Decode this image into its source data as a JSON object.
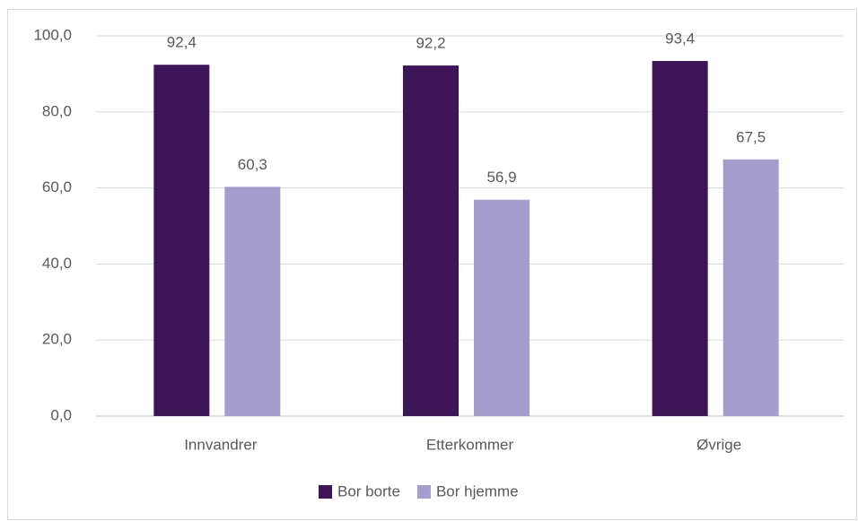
{
  "chart_data": {
    "type": "bar",
    "categories": [
      "Innvandrer",
      "Etterkommer",
      "Øvrige"
    ],
    "series": [
      {
        "name": "Bor borte",
        "color": "#3e1558",
        "values": [
          92.4,
          92.2,
          93.4
        ],
        "value_labels": [
          "92,4",
          "92,2",
          "93,4"
        ]
      },
      {
        "name": "Bor hjemme",
        "color": "#a59dcd",
        "values": [
          60.3,
          56.9,
          67.5
        ],
        "value_labels": [
          "60,3",
          "56,9",
          "67,5"
        ]
      }
    ],
    "ylim": [
      0,
      100
    ],
    "yticks": [
      {
        "value": 0,
        "label": "0,0"
      },
      {
        "value": 20,
        "label": "20,0"
      },
      {
        "value": 40,
        "label": "40,0"
      },
      {
        "value": 60,
        "label": "60,0"
      },
      {
        "value": 80,
        "label": "80,0"
      },
      {
        "value": 100,
        "label": "100,0"
      }
    ],
    "grid": true,
    "legend": "bottom"
  }
}
